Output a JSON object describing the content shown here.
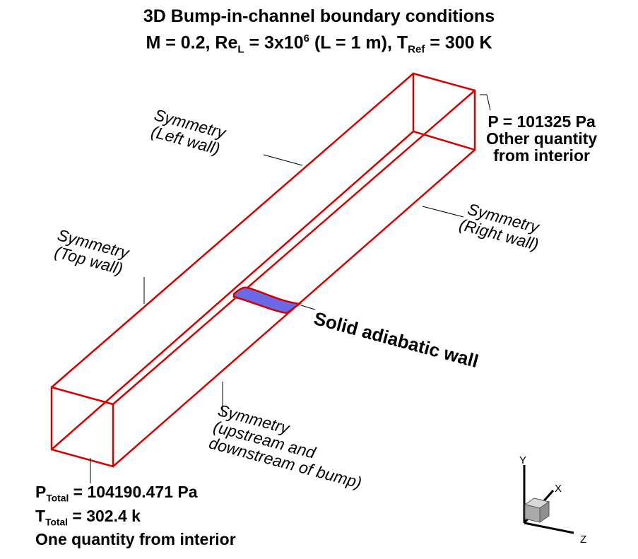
{
  "title": {
    "line1": "3D Bump-in-channel boundary conditions",
    "line2_prefix": "M = 0.2, Re",
    "line2_sub1": "L",
    "line2_mid1": " = 3x10",
    "line2_sup": "6",
    "line2_mid2": " (L = 1 m), T",
    "line2_sub2": "Ref",
    "line2_suffix": " = 300 K"
  },
  "labels": {
    "left_wall": {
      "line1": "Symmetry",
      "line2": "(Left wall)"
    },
    "top_wall": {
      "line1": "Symmetry",
      "line2": "(Top wall)"
    },
    "right_wall": {
      "line1": "Symmetry",
      "line2": "(Right wall)"
    },
    "bottom": {
      "line1": "Symmetry",
      "line2": "(upstream and",
      "line3": "downstream of bump)"
    },
    "bump": "Solid adiabatic wall",
    "outlet": {
      "line1": "P = 101325 Pa",
      "line2": "Other quantity",
      "line3": "from interior"
    },
    "inlet": {
      "p_sym": "P",
      "p_sub": "Total",
      "p_val": " = 104190.471 Pa",
      "t_sym": "T",
      "t_sub": "Total",
      "t_val": " = 302.4 k",
      "line3": "One quantity from interior"
    }
  },
  "axes": {
    "y": "Y",
    "x": "X",
    "z": "Z"
  },
  "colors": {
    "box_edges": "#d40000",
    "bump_fill": "#6a6ae6",
    "leader_lines": "#000000",
    "triad_cube": "#b8b8b8"
  }
}
